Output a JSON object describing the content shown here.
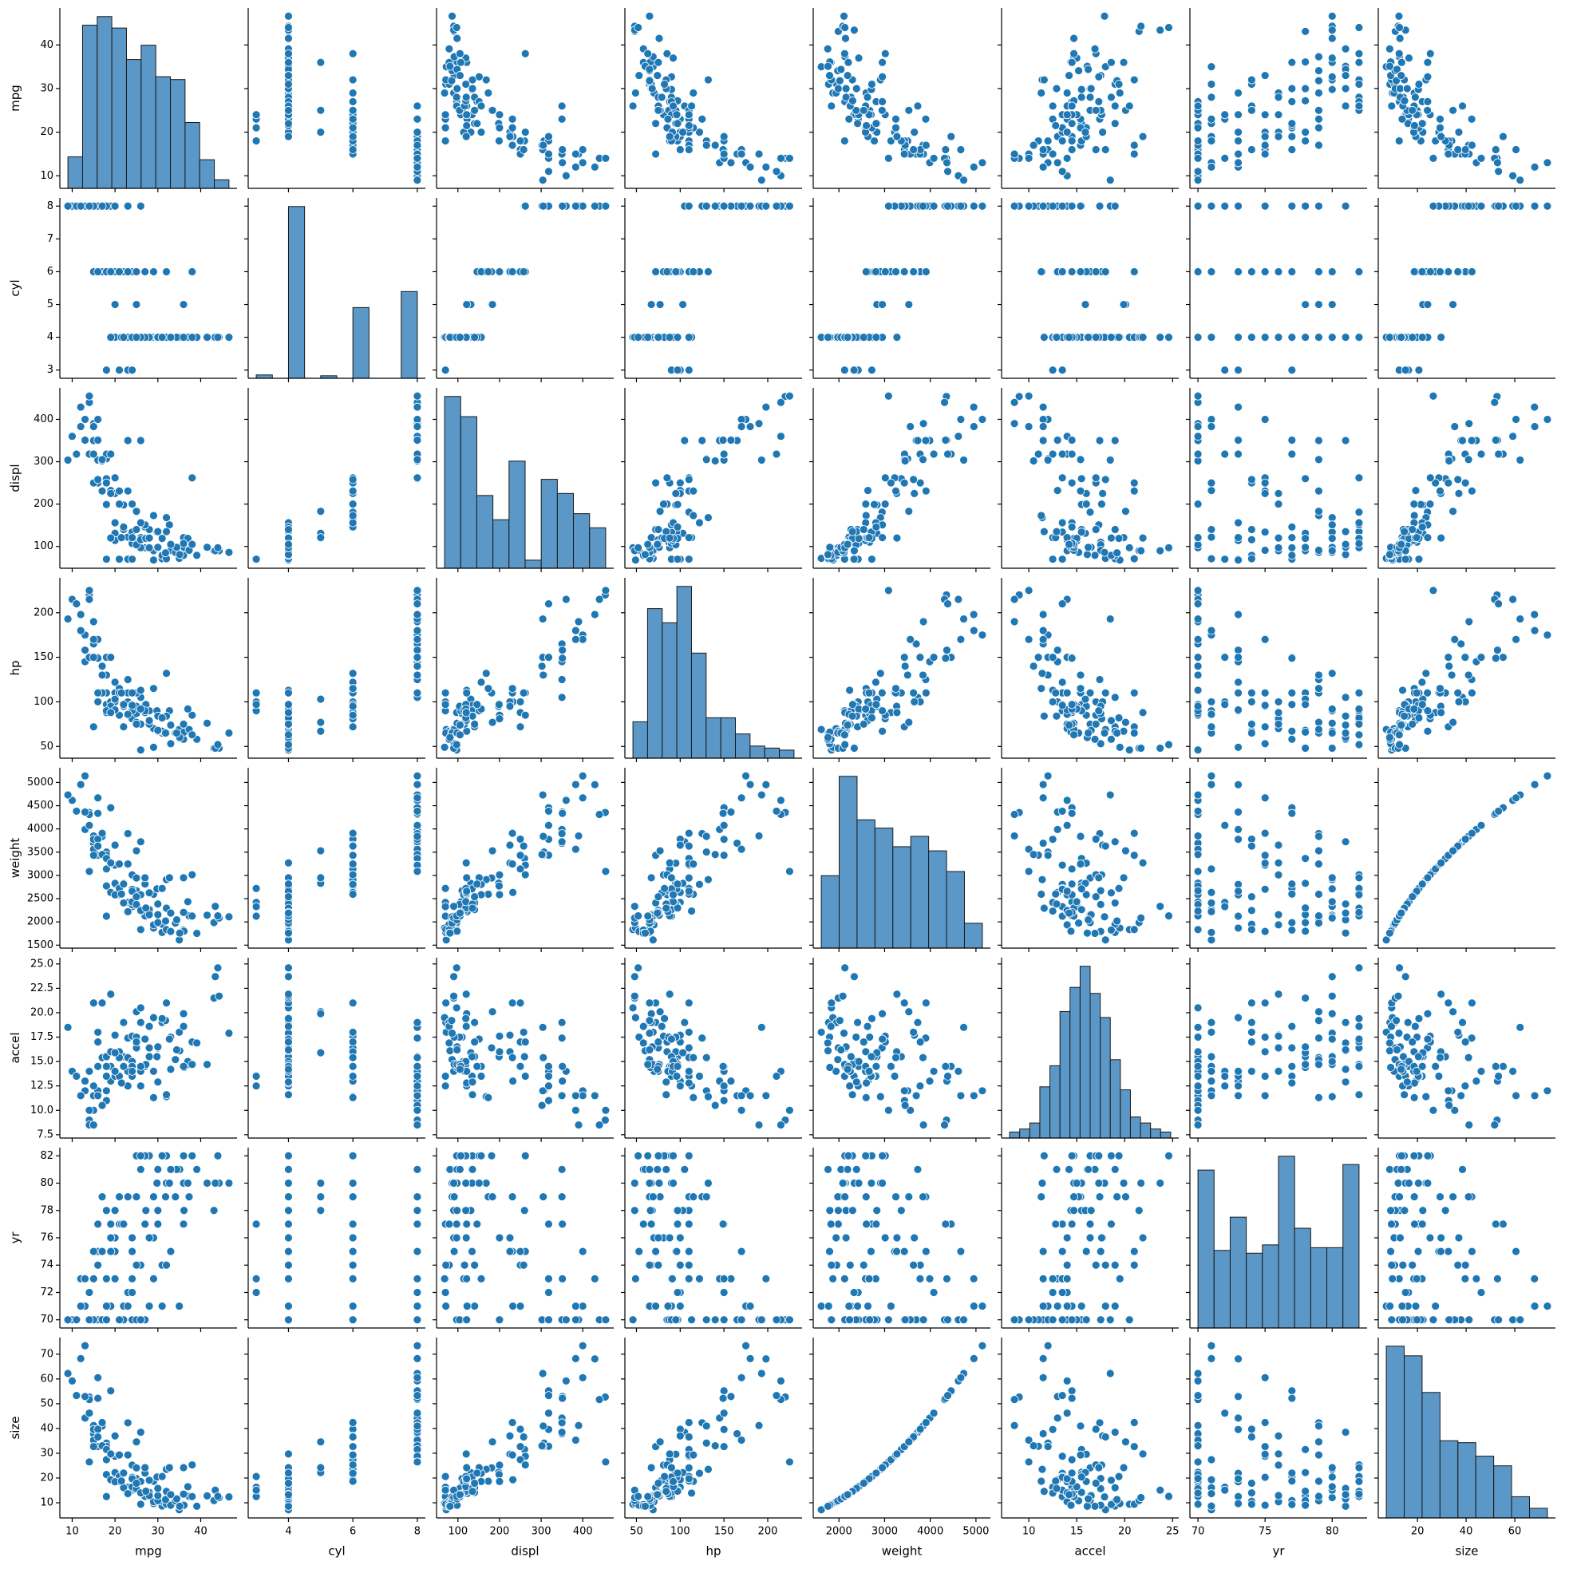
{
  "chart_data": {
    "type": "pairplot",
    "color": "#1f77b4",
    "edgecolor": "#ffffff",
    "hist_color": "#5b97c7",
    "hist_edgecolor": "#1a1a1a",
    "columns": [
      "mpg",
      "cyl",
      "displ",
      "hp",
      "weight",
      "accel",
      "yr",
      "size"
    ],
    "axes": [
      {
        "lim": [
          7.12,
          48.48
        ],
        "xticks": [
          10,
          20,
          30,
          40
        ],
        "yticks": [
          10,
          20,
          30,
          40
        ],
        "hist": {
          "bins": [
            9,
            12.42,
            15.84,
            19.25,
            22.67,
            26.09,
            29.51,
            32.93,
            36.35,
            39.76,
            43.18,
            46.6
          ],
          "counts": [
            11,
            57,
            60,
            56,
            45,
            50,
            39,
            38,
            23,
            10,
            3
          ]
        }
      },
      {
        "lim": [
          2.75,
          8.25
        ],
        "xticks": [
          4,
          6,
          8
        ],
        "yticks": [
          3,
          4,
          5,
          6,
          7,
          8
        ],
        "hist": {
          "bins": [
            3,
            3.5,
            4,
            4.5,
            5,
            5.5,
            6,
            6.5,
            7,
            7.5,
            8
          ],
          "counts": [
            4,
            0,
            204,
            0,
            3,
            0,
            84,
            0,
            0,
            103
          ]
        }
      },
      {
        "lim": [
          48.65,
          474.35
        ],
        "xticks": [
          100,
          200,
          300,
          400
        ],
        "yticks": [
          100,
          200,
          300,
          400
        ],
        "hist": {
          "bins": [
            68,
            106.7,
            145.4,
            184.1,
            222.8,
            261.5,
            300.2,
            338.9,
            377.6,
            416.3,
            455
          ],
          "counts": [
            85,
            75,
            36,
            24,
            53,
            4,
            44,
            37,
            27,
            20
          ]
        }
      },
      {
        "lim": [
          36.8,
          239.2
        ],
        "xticks": [
          50,
          100,
          150,
          200
        ],
        "yticks": [
          50,
          100,
          150,
          200
        ],
        "hist": {
          "bins": [
            46,
            62.73,
            79.45,
            96.18,
            112.91,
            129.64,
            146.36,
            163.09,
            179.82,
            196.55,
            213.27,
            230
          ],
          "counts": [
            18,
            74,
            67,
            85,
            52,
            20,
            20,
            12,
            6,
            5,
            4
          ]
        }
      },
      {
        "lim": [
          1436.65,
          5316.35
        ],
        "xticks": [
          2000,
          3000,
          4000,
          5000
        ],
        "yticks": [
          1500,
          2000,
          2500,
          3000,
          3500,
          4000,
          4500,
          5000
        ],
        "hist": {
          "bins": [
            1613,
            2004.9,
            2396.8,
            2788.7,
            3180.6,
            3572.4,
            3964.3,
            4356.2,
            4748.1,
            5140
          ],
          "counts": [
            35,
            83,
            62,
            58,
            49,
            54,
            47,
            37,
            12
          ]
        }
      },
      {
        "lim": [
          7.16,
          25.64
        ],
        "xticks": [
          10,
          15,
          20,
          25
        ],
        "yticks": [
          7.5,
          {
            "value": 10,
            "label": "10.0"
          },
          12.5,
          {
            "value": 15,
            "label": "15.0"
          },
          17.5,
          {
            "value": 20,
            "label": "20.0"
          },
          22.5,
          {
            "value": 25,
            "label": "25.0"
          }
        ],
        "hist": {
          "bins": [
            8,
            9.05,
            10.1,
            11.15,
            12.2,
            13.25,
            14.3,
            15.35,
            16.4,
            17.45,
            18.5,
            19.55,
            20.6,
            21.65,
            22.7,
            23.75,
            24.8
          ],
          "counts": [
            2,
            3,
            5,
            17,
            24,
            42,
            50,
            57,
            48,
            40,
            26,
            16,
            7,
            5,
            3,
            2
          ]
        }
      },
      {
        "lim": [
          69.4,
          82.6
        ],
        "xticks": [
          70,
          75,
          80
        ],
        "yticks": [
          70,
          72,
          74,
          76,
          78,
          80,
          82
        ],
        "hist": {
          "bins": [
            70,
            71.2,
            72.4,
            73.6,
            74.8,
            76,
            77.2,
            78.4,
            79.6,
            80.8,
            82
          ],
          "counts": [
            57,
            28,
            40,
            27,
            30,
            62,
            36,
            29,
            29,
            59
          ]
        }
      },
      {
        "lim": [
          3.89,
          76.71
        ],
        "xticks": [
          20,
          40,
          60
        ],
        "yticks": [
          10,
          20,
          30,
          40,
          50,
          60,
          70
        ],
        "hist": {
          "bins": [
            7.2,
            14.56,
            21.91,
            29.27,
            36.62,
            43.98,
            51.34,
            58.69,
            66.05,
            73.4
          ],
          "counts": [
            89,
            84,
            65,
            40,
            39,
            32,
            27,
            11,
            5
          ]
        }
      }
    ],
    "rows": [
      [
        18,
        8,
        307,
        130,
        3504,
        12,
        70,
        34.1
      ],
      [
        15,
        8,
        350,
        165,
        3693,
        11.5,
        70,
        37.9
      ],
      [
        18,
        8,
        318,
        150,
        3436,
        11,
        70,
        32.8
      ],
      [
        16,
        8,
        304,
        150,
        3433,
        12,
        70,
        32.7
      ],
      [
        14,
        8,
        454,
        220,
        4354,
        9,
        70,
        52.7
      ],
      [
        14,
        8,
        440,
        215,
        4312,
        8.5,
        70,
        51.7
      ],
      [
        15,
        8,
        390,
        190,
        3850,
        8.5,
        70,
        41.2
      ],
      [
        10,
        8,
        360,
        215,
        4615,
        14,
        70,
        59.2
      ],
      [
        9,
        8,
        304,
        193,
        4732,
        18.5,
        70,
        62.2
      ],
      [
        13,
        8,
        400,
        175,
        5140,
        12,
        71,
        73.4
      ],
      [
        12,
        8,
        429,
        198,
        4952,
        11.5,
        73,
        68.1
      ],
      [
        13,
        8,
        350,
        145,
        3988,
        13,
        73,
        44.2
      ],
      [
        14,
        8,
        318,
        150,
        4077,
        14,
        72,
        46.2
      ],
      [
        16,
        8,
        400,
        170,
        4668,
        11.5,
        75,
        60.5
      ],
      [
        15,
        8,
        383,
        170,
        3563,
        10,
        70,
        35.3
      ],
      [
        17,
        8,
        302,
        140,
        3449,
        10.5,
        70,
        33
      ],
      [
        13,
        8,
        351,
        158,
        4363,
        13,
        73,
        52.9
      ],
      [
        19,
        8,
        318,
        150,
        4456,
        14.5,
        77,
        55.2
      ],
      [
        18,
        8,
        260,
        110,
        3365,
        15.5,
        78,
        31.5
      ],
      [
        23,
        8,
        350,
        125,
        3900,
        17.4,
        79,
        42.3
      ],
      [
        26,
        8,
        350,
        105,
        3725,
        19,
        81,
        38.5
      ],
      [
        16,
        8,
        351,
        149,
        4335,
        14.5,
        77,
        52.2
      ],
      [
        15,
        8,
        318,
        150,
        3777,
        12.5,
        73,
        39.6
      ],
      [
        20,
        8,
        262,
        110,
        3221,
        13.5,
        75,
        28.8
      ],
      [
        11,
        8,
        318,
        210,
        4382,
        13.5,
        70,
        53.3
      ],
      [
        17,
        8,
        305,
        130,
        3840,
        15.4,
        79,
        41
      ],
      [
        14,
        8,
        455,
        225,
        3086,
        10,
        70,
        26.5
      ],
      [
        12,
        8,
        383,
        180,
        4955,
        11.5,
        71,
        68.2
      ],
      [
        22,
        6,
        198,
        95,
        2833,
        15.5,
        70,
        22.3
      ],
      [
        18,
        6,
        199,
        97,
        2774,
        15.5,
        70,
        21.4
      ],
      [
        21,
        6,
        200,
        85,
        2587,
        16,
        70,
        18.6
      ],
      [
        16,
        6,
        250,
        100,
        3781,
        17,
        74,
        39.7
      ],
      [
        19,
        6,
        232,
        100,
        2634,
        13,
        71,
        19.3
      ],
      [
        17,
        6,
        231,
        110,
        3907,
        21,
        75,
        42.4
      ],
      [
        20,
        6,
        225,
        100,
        3651,
        17.7,
        76,
        37
      ],
      [
        24,
        6,
        200,
        81,
        3012,
        17.6,
        76,
        25.2
      ],
      [
        18,
        6,
        250,
        88,
        3139,
        14.5,
        71,
        27.4
      ],
      [
        15,
        6,
        250,
        72,
        3432,
        21,
        75,
        32.7
      ],
      [
        25,
        6,
        181,
        110,
        2945,
        16.4,
        82,
        24.1
      ],
      [
        27,
        6,
        146,
        97,
        2815,
        14.5,
        77,
        22
      ],
      [
        32,
        6,
        168,
        132,
        2910,
        11.4,
        80,
        23.5
      ],
      [
        38,
        6,
        262,
        85,
        3015,
        17,
        82,
        25.3
      ],
      [
        20,
        6,
        156,
        122,
        2807,
        13.5,
        73,
        21.9
      ],
      [
        23,
        6,
        231,
        110,
        3245,
        15.4,
        79,
        29.3
      ],
      [
        19,
        6,
        225,
        95,
        3264,
        16,
        75,
        29.6
      ],
      [
        16,
        6,
        258,
        110,
        3632,
        18,
        74,
        36.6
      ],
      [
        21,
        6,
        231,
        115,
        3245,
        15.4,
        79,
        29.3
      ],
      [
        29,
        6,
        173,
        115,
        2595,
        11.3,
        79,
        18.7
      ],
      [
        20,
        5,
        131,
        103,
        2830,
        15.9,
        78,
        22.2
      ],
      [
        25,
        5,
        183,
        77,
        3530,
        20.1,
        79,
        34.6
      ],
      [
        36,
        5,
        121,
        67,
        2950,
        19.9,
        80,
        24.2
      ],
      [
        18,
        3,
        70,
        90,
        2124,
        13.5,
        73,
        12.5
      ],
      [
        21,
        3,
        70,
        110,
        2720,
        13.5,
        77,
        20.6
      ],
      [
        23,
        3,
        70,
        100,
        2420,
        12.5,
        72,
        16.3
      ],
      [
        24,
        3,
        70,
        97,
        2330,
        13.5,
        72,
        15.1
      ],
      [
        24,
        4,
        113,
        95,
        2372,
        15,
        70,
        15.6
      ],
      [
        27,
        4,
        97,
        88,
        2130,
        14.5,
        70,
        12.6
      ],
      [
        26,
        4,
        97,
        46,
        1835,
        20.5,
        70,
        9.4
      ],
      [
        25,
        4,
        110,
        87,
        2672,
        17.5,
        70,
        19.8
      ],
      [
        24,
        4,
        107,
        90,
        2430,
        14.5,
        70,
        16.4
      ],
      [
        25,
        4,
        104,
        95,
        2375,
        17.5,
        70,
        15.7
      ],
      [
        26,
        4,
        121,
        113,
        2234,
        12.5,
        70,
        13.9
      ],
      [
        28,
        4,
        140,
        90,
        2264,
        15.5,
        71,
        14.2
      ],
      [
        35,
        4,
        72,
        69,
        1613,
        18,
        71,
        7.2
      ],
      [
        31,
        4,
        71,
        65,
        1773,
        19,
        71,
        8.7
      ],
      [
        22,
        4,
        140,
        72,
        2408,
        19,
        71,
        16.1
      ],
      [
        23,
        4,
        122,
        86,
        2220,
        14,
        71,
        13.7
      ],
      [
        20,
        4,
        114,
        91,
        2582,
        14,
        73,
        18.5
      ],
      [
        29,
        4,
        68,
        49,
        1867,
        19.5,
        73,
        9.7
      ],
      [
        26,
        4,
        116,
        75,
        2246,
        14,
        74,
        14
      ],
      [
        31,
        4,
        79,
        67,
        1950,
        19,
        74,
        10.6
      ],
      [
        32,
        4,
        71,
        65,
        1836,
        21,
        74,
        9.4
      ],
      [
        24,
        4,
        134,
        96,
        2702,
        13.5,
        75,
        20.3
      ],
      [
        33,
        4,
        91,
        53,
        1795,
        17.5,
        75,
        9
      ],
      [
        29,
        4,
        90,
        70,
        1937,
        14,
        76,
        10.4
      ],
      [
        28,
        4,
        97,
        75,
        2155,
        16.4,
        76,
        12.9
      ],
      [
        30,
        4,
        97,
        67,
        1985,
        16.4,
        77,
        10.9
      ],
      [
        36,
        4,
        79,
        58,
        1825,
        18.6,
        77,
        9.3
      ],
      [
        21.5,
        4,
        121,
        110,
        2600,
        12.8,
        77,
        18.8
      ],
      [
        30,
        4,
        98,
        68,
        2155,
        16.5,
        78,
        12.9
      ],
      [
        43.1,
        4,
        90,
        48,
        1985,
        21.5,
        78,
        10.9
      ],
      [
        36.1,
        4,
        98,
        66,
        1800,
        14.4,
        78,
        9
      ],
      [
        31.8,
        4,
        85,
        65,
        2020,
        19.2,
        79,
        11.3
      ],
      [
        34.1,
        4,
        86,
        65,
        1975,
        15.2,
        79,
        10.8
      ],
      [
        37.3,
        4,
        91,
        69,
        2130,
        14.7,
        79,
        12.6
      ],
      [
        41.5,
        4,
        98,
        76,
        2144,
        14.7,
        80,
        12.8
      ],
      [
        46.6,
        4,
        86,
        65,
        2110,
        17.9,
        80,
        12.4
      ],
      [
        44.3,
        4,
        90,
        48,
        2085,
        21.7,
        80,
        12.1
      ],
      [
        43.4,
        4,
        90,
        48,
        2335,
        23.7,
        80,
        15.1
      ],
      [
        29.8,
        4,
        134,
        90,
        2711,
        15.5,
        80,
        20.4
      ],
      [
        32.7,
        4,
        151,
        90,
        2950,
        17.3,
        80,
        24.2
      ],
      [
        27.2,
        4,
        119,
        97,
        2300,
        14.7,
        78,
        14.7
      ],
      [
        37,
        4,
        119,
        92,
        2434,
        15,
        80,
        16.5
      ],
      [
        39.1,
        4,
        79,
        58,
        1755,
        16.9,
        81,
        8.6
      ],
      [
        35.1,
        4,
        81,
        60,
        1760,
        16.1,
        81,
        8.6
      ],
      [
        34.4,
        4,
        98,
        65,
        2045,
        16.2,
        81,
        11.6
      ],
      [
        30,
        4,
        135,
        84,
        2385,
        12.9,
        81,
        15.8
      ],
      [
        38,
        4,
        105,
        63,
        2125,
        14.7,
        82,
        12.5
      ],
      [
        44,
        4,
        97,
        52,
        2130,
        24.6,
        82,
        12.6
      ],
      [
        32,
        4,
        135,
        84,
        2295,
        11.6,
        82,
        14.6
      ],
      [
        28,
        4,
        120,
        79,
        2625,
        18.6,
        82,
        19.1
      ],
      [
        31,
        4,
        119,
        82,
        2720,
        19.4,
        82,
        20.6
      ],
      [
        27,
        4,
        151,
        90,
        2950,
        17.3,
        82,
        24.2
      ],
      [
        36,
        4,
        107,
        75,
        2205,
        14.5,
        82,
        13.5
      ],
      [
        26,
        4,
        156,
        92,
        2585,
        14.5,
        82,
        18.6
      ],
      [
        24,
        4,
        121,
        110,
        2660,
        14,
        73,
        19.7
      ],
      [
        19,
        4,
        120,
        88,
        3270,
        21.9,
        76,
        29.7
      ],
      [
        22,
        4,
        146,
        97,
        2815,
        14.5,
        77,
        22
      ],
      [
        33,
        4,
        105,
        74,
        2190,
        14.2,
        81,
        13.3
      ],
      [
        25,
        4,
        140,
        75,
        2542,
        17,
        74,
        17.9
      ]
    ]
  }
}
